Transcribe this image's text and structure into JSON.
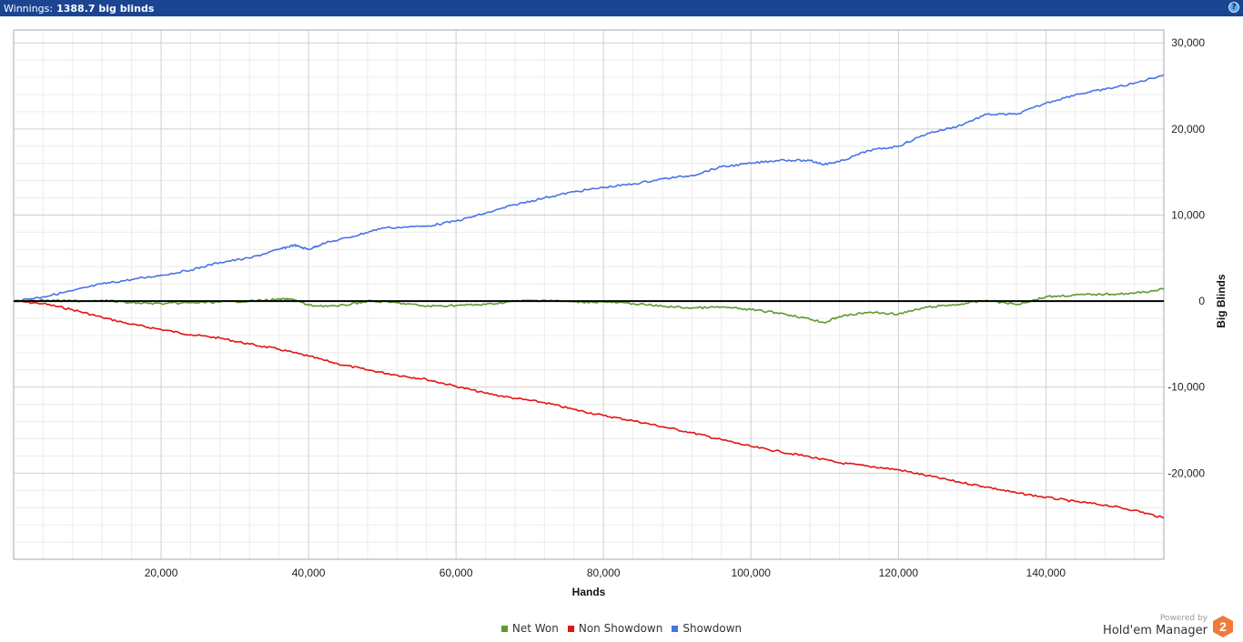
{
  "header": {
    "label": "Winnings:",
    "value": "1388.7 big blinds",
    "help_icon": "question-mark-icon",
    "help_symbol": "?",
    "color": "#1b4592"
  },
  "branding": {
    "powered_by": "Powered by",
    "name": "Hold'em Manager",
    "logo_text": "2",
    "logo_color": "#f07a3a"
  },
  "chart_data": {
    "type": "line",
    "title": "",
    "xlabel": "Hands",
    "ylabel": "Big Blinds",
    "xlim": [
      0,
      156000
    ],
    "ylim": [
      -30000,
      31500
    ],
    "y_axis_position": "right",
    "grid": true,
    "legend_position": "bottom-center",
    "x_ticks": [
      20000,
      40000,
      60000,
      80000,
      100000,
      120000,
      140000
    ],
    "x_tick_labels": [
      "20,000",
      "40,000",
      "60,000",
      "80,000",
      "100,000",
      "120,000",
      "140,000"
    ],
    "y_ticks": [
      -20000,
      -10000,
      0,
      10000,
      20000,
      30000
    ],
    "y_tick_labels": [
      "-20,000",
      "-10,000",
      "0",
      "10,000",
      "20,000",
      "30,000"
    ],
    "series": [
      {
        "name": "Showdown",
        "color": "#4a72e8",
        "x": [
          0,
          4000,
          8000,
          12000,
          16000,
          20000,
          24000,
          28000,
          32000,
          36000,
          38000,
          40000,
          42000,
          46000,
          50000,
          56000,
          60000,
          64000,
          68000,
          72000,
          76000,
          80000,
          84000,
          88000,
          92000,
          96000,
          100000,
          104000,
          108000,
          110000,
          112000,
          116000,
          120000,
          124000,
          128000,
          132000,
          136000,
          140000,
          144000,
          148000,
          152000,
          156000
        ],
        "y": [
          0,
          500,
          1200,
          2000,
          2500,
          3000,
          3600,
          4500,
          5000,
          6000,
          6500,
          6000,
          6700,
          7500,
          8500,
          8700,
          9300,
          10200,
          11200,
          12000,
          12700,
          13200,
          13600,
          14200,
          14600,
          15600,
          16000,
          16400,
          16300,
          15900,
          16200,
          17500,
          18000,
          19500,
          20300,
          21700,
          21700,
          23000,
          24000,
          24600,
          25300,
          26300
        ]
      },
      {
        "name": "Non Showdown",
        "color": "#e21414",
        "x": [
          0,
          4000,
          8000,
          12000,
          16000,
          20000,
          24000,
          28000,
          32000,
          36000,
          40000,
          44000,
          48000,
          52000,
          56000,
          60000,
          64000,
          68000,
          72000,
          76000,
          80000,
          84000,
          88000,
          92000,
          96000,
          100000,
          104000,
          108000,
          112000,
          116000,
          120000,
          124000,
          128000,
          132000,
          136000,
          140000,
          144000,
          148000,
          152000,
          156000
        ],
        "y": [
          0,
          -300,
          -1000,
          -1900,
          -2700,
          -3300,
          -3900,
          -4300,
          -5000,
          -5600,
          -6400,
          -7300,
          -8000,
          -8600,
          -9100,
          -9900,
          -10700,
          -11300,
          -11800,
          -12600,
          -13300,
          -13900,
          -14600,
          -15300,
          -16100,
          -16900,
          -17500,
          -18100,
          -18800,
          -19200,
          -19600,
          -20300,
          -21000,
          -21600,
          -22300,
          -22800,
          -23300,
          -23700,
          -24300,
          -25200
        ]
      },
      {
        "name": "Net Won",
        "color": "#5c9a2c",
        "x": [
          0,
          4000,
          8000,
          12000,
          16000,
          20000,
          24000,
          28000,
          32000,
          36000,
          38000,
          40000,
          44000,
          48000,
          52000,
          56000,
          60000,
          64000,
          68000,
          72000,
          76000,
          80000,
          84000,
          88000,
          92000,
          96000,
          100000,
          104000,
          108000,
          110000,
          112000,
          116000,
          120000,
          124000,
          128000,
          132000,
          136000,
          140000,
          144000,
          148000,
          152000,
          156000
        ],
        "y": [
          0,
          100,
          0,
          100,
          -200,
          -300,
          -200,
          -100,
          0,
          200,
          200,
          -500,
          -600,
          0,
          -200,
          -600,
          -500,
          -400,
          0,
          100,
          -100,
          -100,
          -300,
          -600,
          -800,
          -700,
          -1000,
          -1400,
          -2100,
          -2500,
          -1800,
          -1300,
          -1500,
          -700,
          -400,
          100,
          -400,
          500,
          700,
          800,
          900,
          1388.7
        ]
      }
    ],
    "legend_order": [
      "Net Won",
      "Non Showdown",
      "Showdown"
    ]
  }
}
